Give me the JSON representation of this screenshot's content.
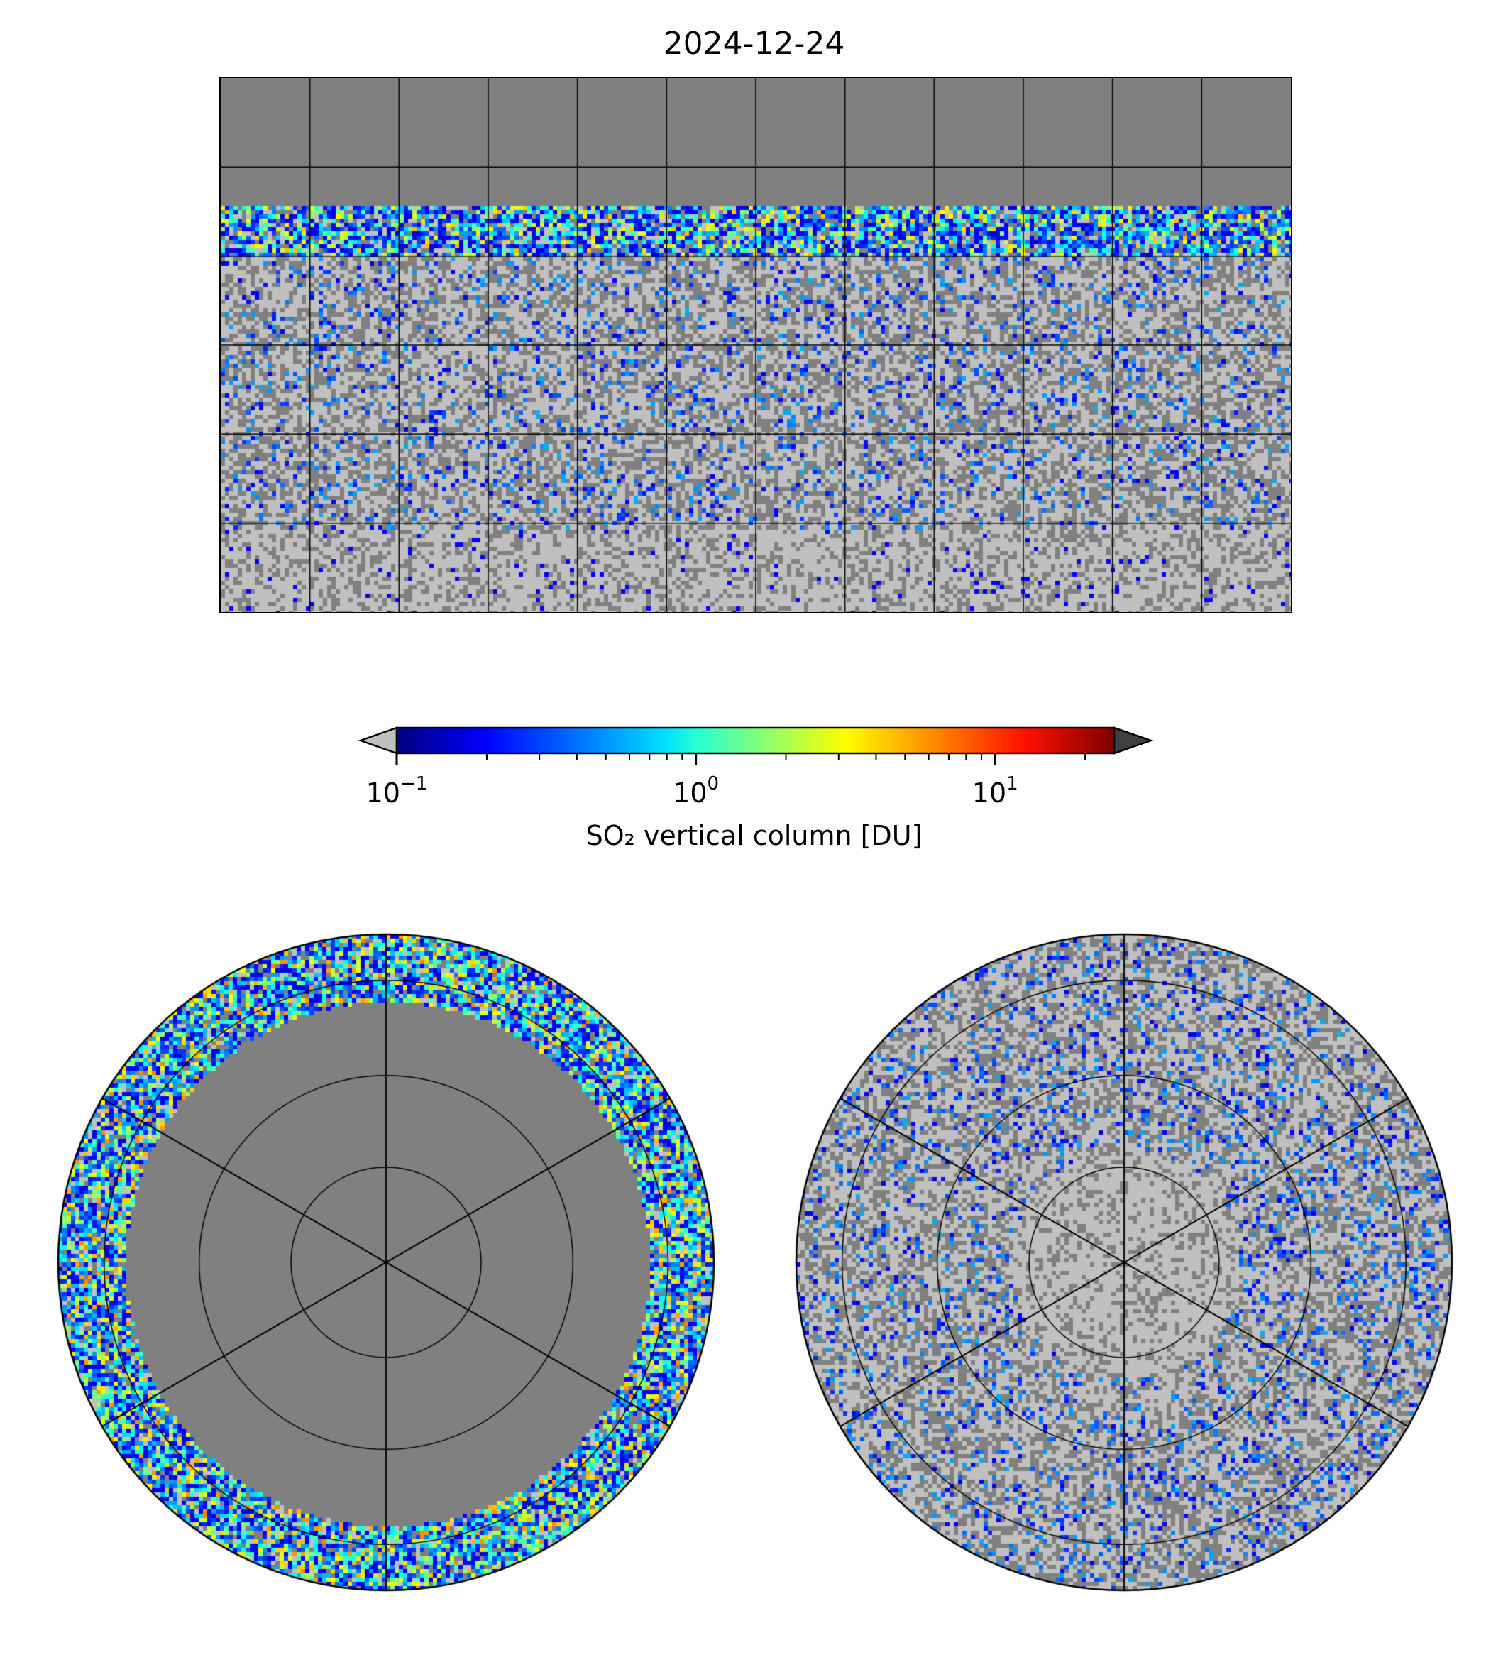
{
  "title": "2024-12-24",
  "colorbar": {
    "label": "SO₂ vertical column [DU]",
    "scale": "log",
    "range": [
      0.1,
      25
    ],
    "ticks": [
      {
        "base": "10",
        "exp": "−1",
        "value": 0.1
      },
      {
        "base": "10",
        "exp": "0",
        "value": 1
      },
      {
        "base": "10",
        "exp": "1",
        "value": 10
      }
    ],
    "under_color": "#c0c0c0",
    "over_color": "#404040",
    "colormap": "jet"
  },
  "maps": {
    "global": {
      "projection": "plate carree",
      "grid_lon_step_deg": 30,
      "grid_lat_step_deg": 30
    },
    "north_polar": {
      "projection": "north polar stereographic"
    },
    "south_polar": {
      "projection": "south polar stereographic"
    },
    "no_data_color": "#808080",
    "below_range_color": "#c0c0c0"
  }
}
